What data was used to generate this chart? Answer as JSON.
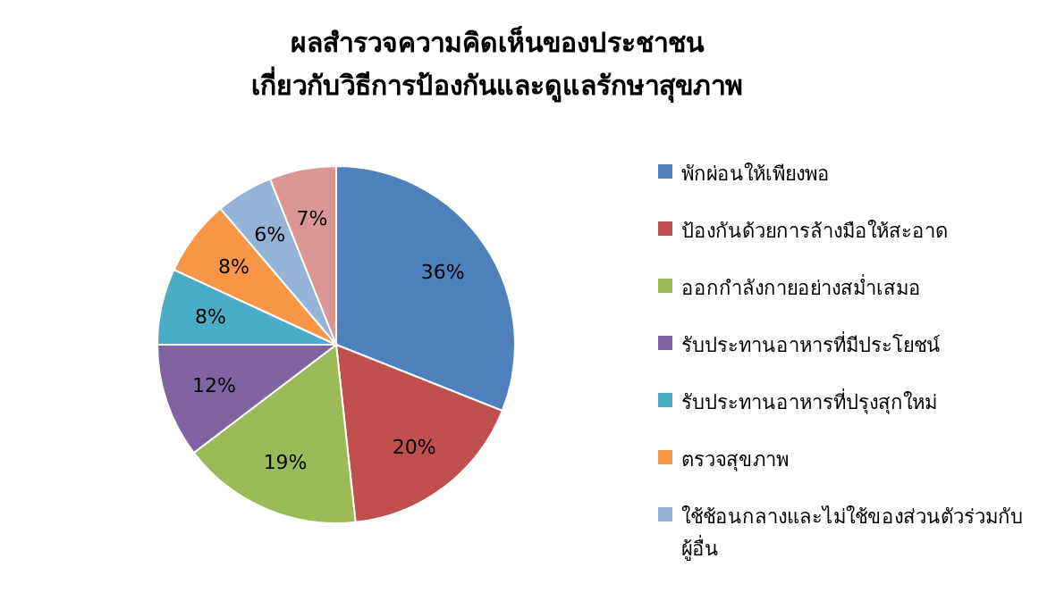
{
  "chart_data": {
    "type": "pie",
    "title": "ผลสำรวจความคิดเห็นของประชาชน\nเกี่ยวกับวิธีการป้องกันและดูแลรักษาสุขภาพ",
    "categories": [
      "พักผ่อนให้เพียงพอ",
      "ป้องกันด้วยการล้างมือให้สะอาด",
      "ออกกำลังกายอย่างสม่ำเสมอ",
      "รับประทานอาหารที่มีประโยชน์",
      "รับประทานอาหารที่ปรุงสุกใหม่",
      "ตรวจสุขภาพ",
      "ใช้ช้อนกลางและไม่ใช้ของส่วนตัวร่วมกับผู้อื่น",
      null
    ],
    "values": [
      36,
      20,
      19,
      12,
      8,
      8,
      6,
      7
    ],
    "value_labels": [
      "36%",
      "20%",
      "19%",
      "12%",
      "8%",
      "8%",
      "6%",
      "7%"
    ],
    "colors": [
      "#4f81bd",
      "#c0504d",
      "#9bbb59",
      "#8064a2",
      "#4bacc6",
      "#f79646",
      "#95b3d7",
      "#d99694"
    ],
    "legend": "right"
  }
}
